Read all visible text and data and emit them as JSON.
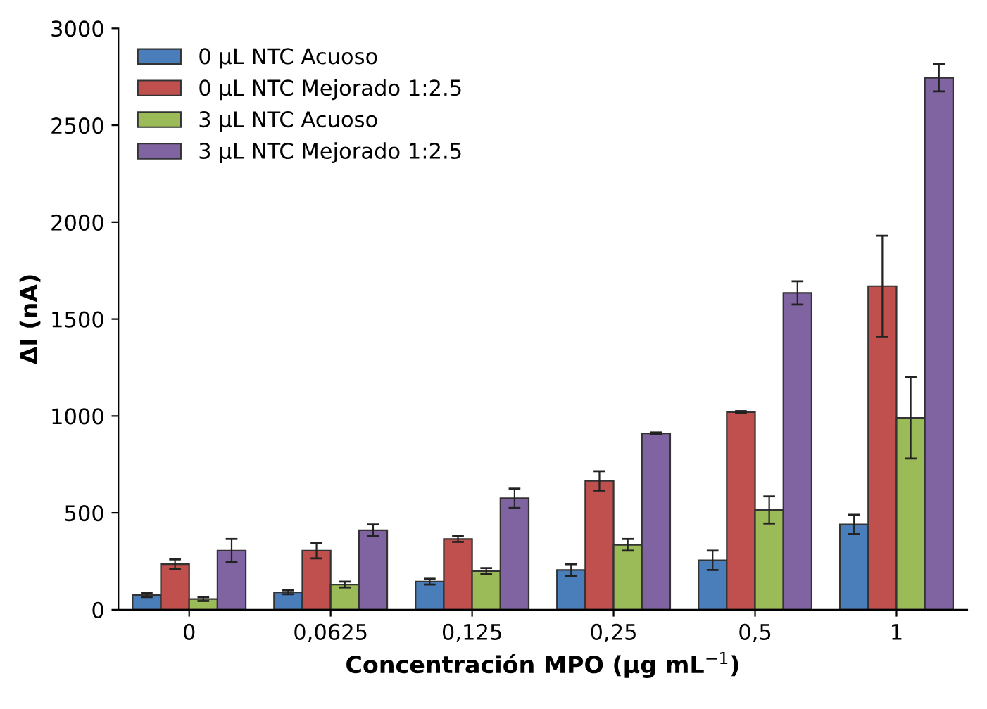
{
  "chart_data": {
    "type": "bar",
    "xlabel": "Concentración MPO (µg mL$^{−1}$)",
    "ylabel": "ΔI (nA)",
    "categories": [
      "0",
      "0,0625",
      "0,125",
      "0,25",
      "0,5",
      "1"
    ],
    "series": [
      {
        "name": "0 µL NTC Acuoso",
        "color": "#4a7ebb",
        "values": [
          75,
          90,
          145,
          205,
          255,
          440
        ],
        "errors": [
          10,
          10,
          15,
          30,
          50,
          50
        ]
      },
      {
        "name": "0 µL NTC Mejorado 1:2.5",
        "color": "#c0504d",
        "values": [
          235,
          305,
          365,
          665,
          1020,
          1670
        ],
        "errors": [
          25,
          40,
          15,
          50,
          5,
          260
        ]
      },
      {
        "name": "3 µL NTC Acuoso",
        "color": "#9bbb59",
        "values": [
          55,
          130,
          200,
          335,
          515,
          990
        ],
        "errors": [
          10,
          15,
          15,
          30,
          70,
          210
        ]
      },
      {
        "name": "3 µL NTC Mejorado 1:2.5",
        "color": "#8064a2",
        "values": [
          305,
          410,
          575,
          910,
          1635,
          2745
        ],
        "errors": [
          60,
          30,
          50,
          5,
          60,
          70
        ]
      }
    ],
    "ylim": [
      0,
      3000
    ],
    "yticks": [
      0,
      500,
      1000,
      1500,
      2000,
      2500,
      3000
    ],
    "grid": false,
    "legend": "top left"
  }
}
